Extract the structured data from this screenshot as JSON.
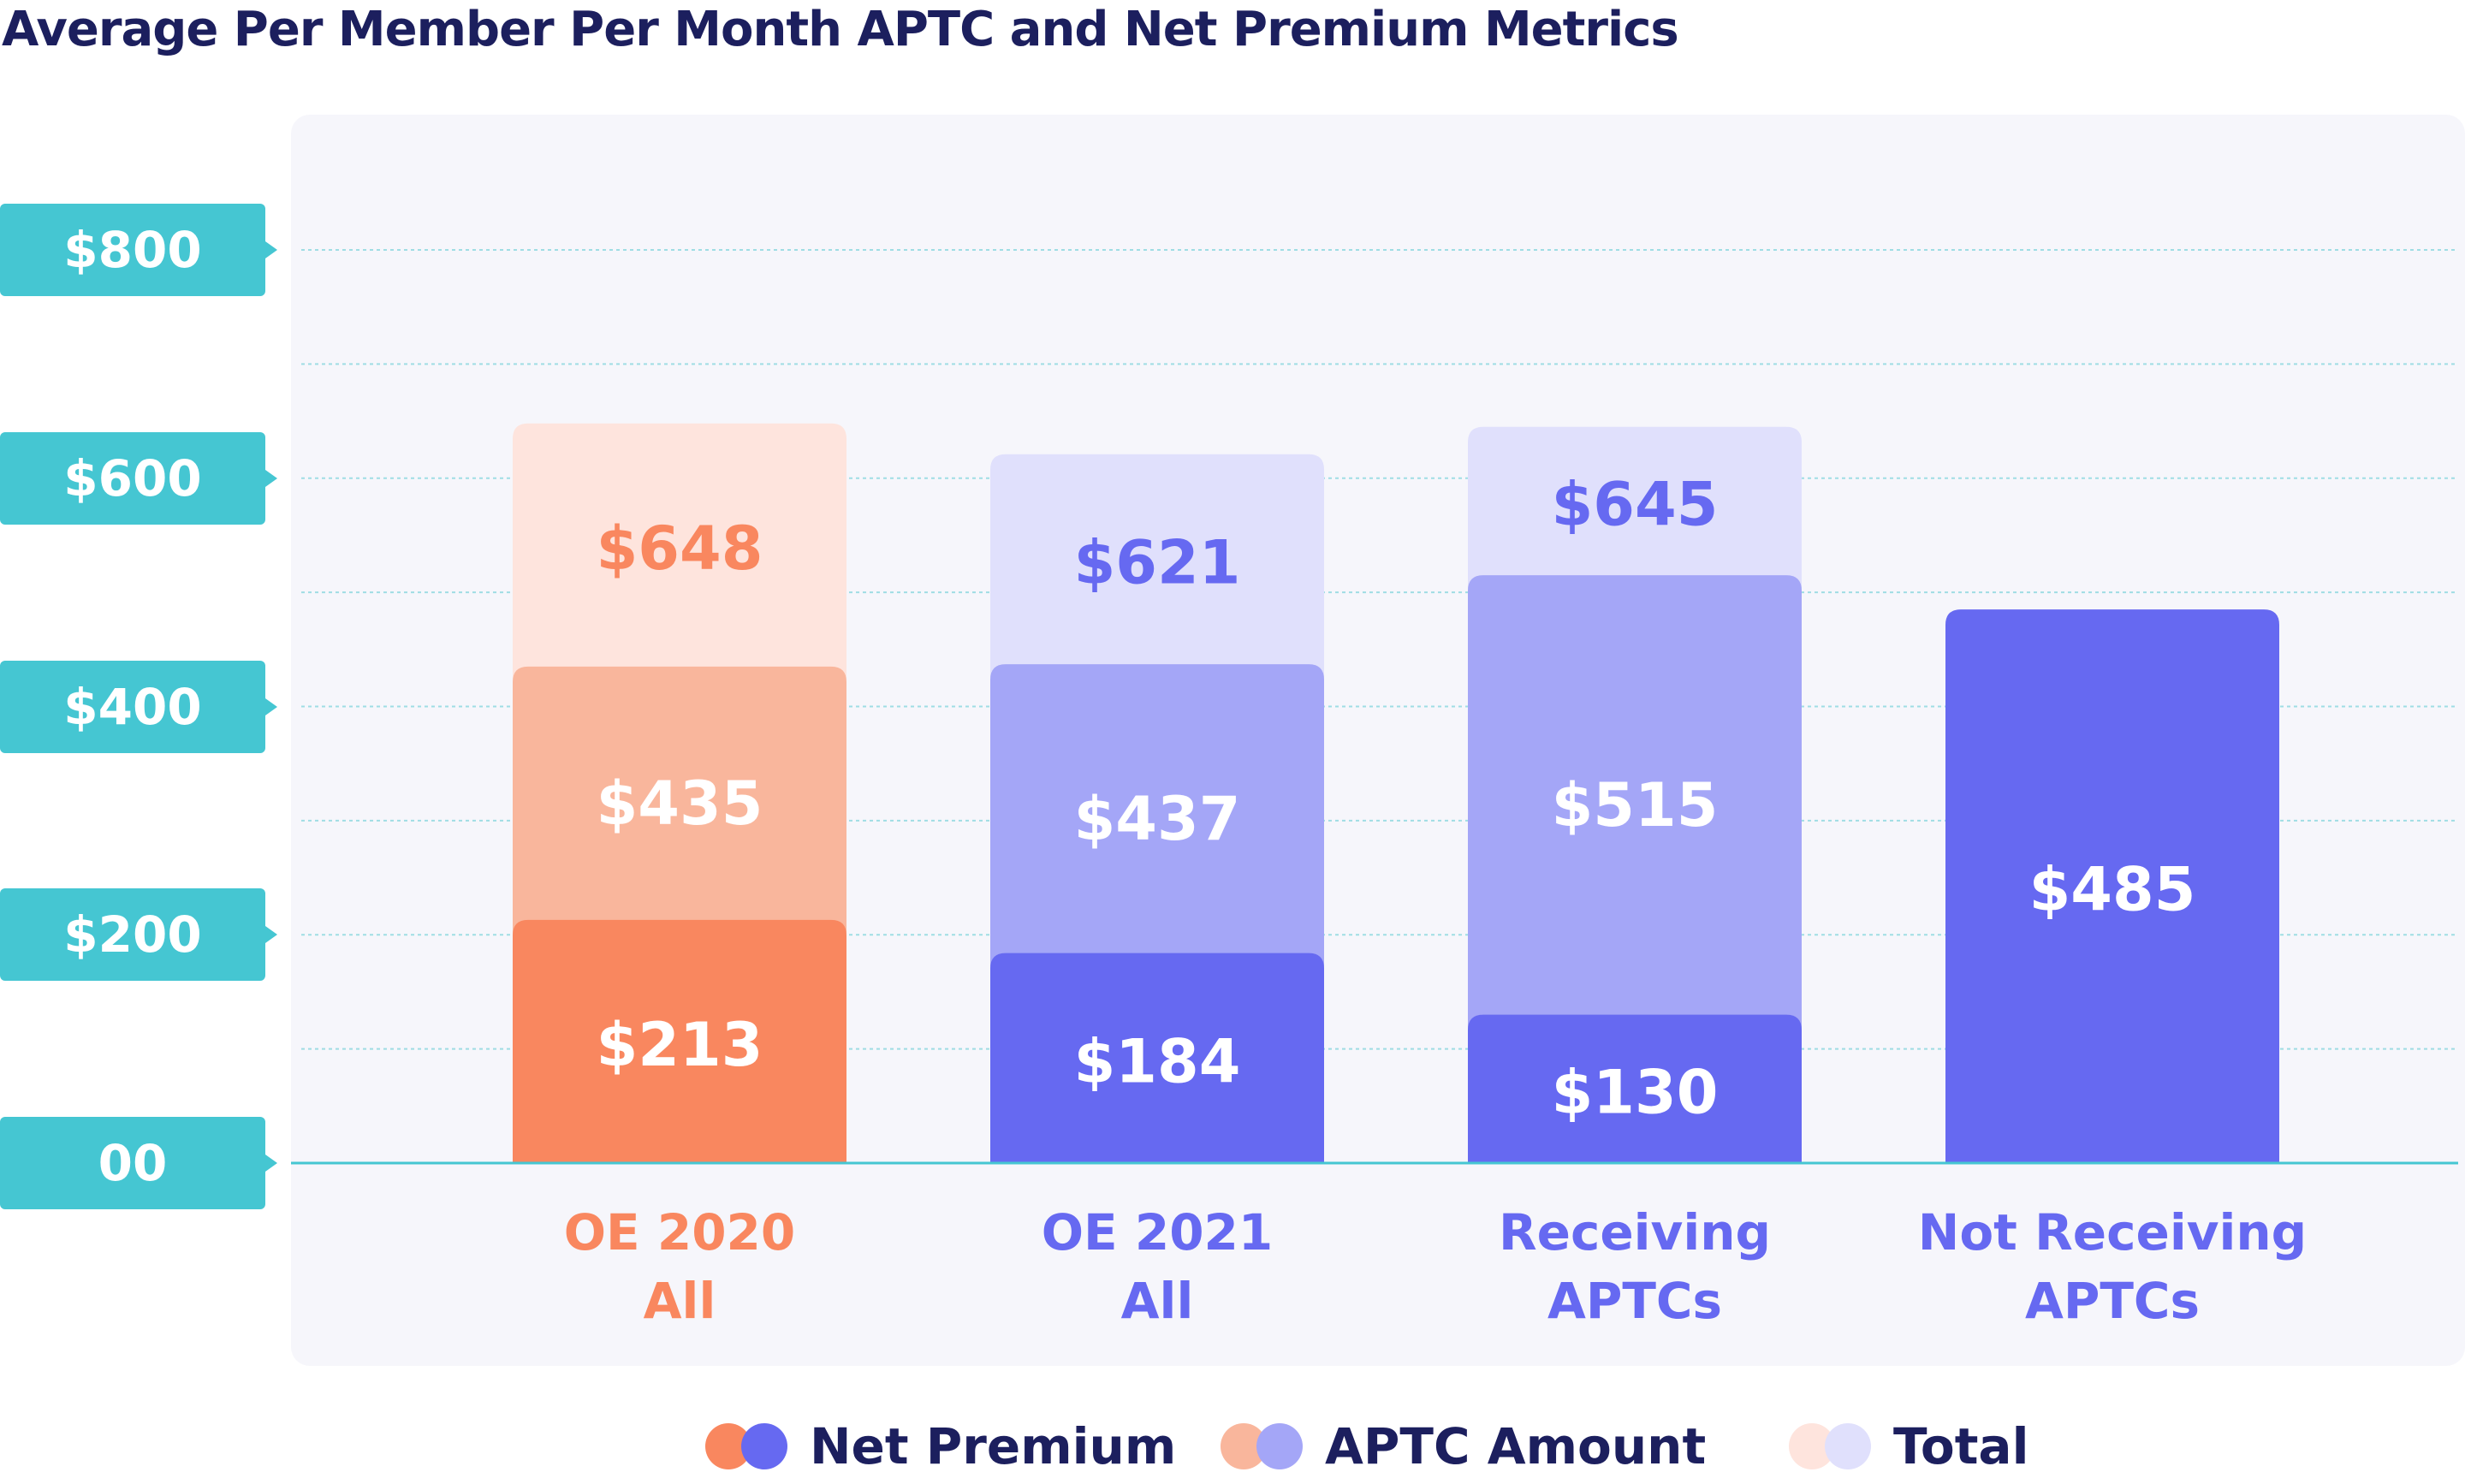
{
  "title": "Average Per Member Per Month APTC and Net Premium Metrics",
  "chart_data": {
    "type": "bar",
    "stacked": true,
    "title": "Average Per Member Per Month APTC and Net Premium Metrics",
    "categories": [
      {
        "lines": [
          "OE 2020",
          "All"
        ],
        "color": "#f9875f"
      },
      {
        "lines": [
          "OE 2021",
          "All"
        ],
        "color": "#6669f1"
      },
      {
        "lines": [
          "Receiving",
          "APTCs"
        ],
        "color": "#6669f1"
      },
      {
        "lines": [
          "Not Receiving",
          "APTCs"
        ],
        "color": "#6669f1"
      }
    ],
    "series": [
      {
        "name": "Net Premium",
        "values": [
          213,
          184,
          130,
          485
        ],
        "labels": [
          "$213",
          "$184",
          "$130",
          "$485"
        ]
      },
      {
        "name": "APTC Amount",
        "values": [
          435,
          437,
          515,
          null
        ],
        "labels": [
          "$435",
          "$437",
          "$515",
          null
        ]
      },
      {
        "name": "Total",
        "values": [
          648,
          621,
          645,
          null
        ],
        "labels": [
          "$648",
          "$621",
          "$645",
          null
        ]
      }
    ],
    "palettes": [
      {
        "net": "#f9875f",
        "aptc": "#f9b69c",
        "total": "#fee4dd",
        "totalLabel": "#f9875f"
      },
      {
        "net": "#6669f1",
        "aptc": "#a4a6f7",
        "total": "#e0e0fc",
        "totalLabel": "#6669f1"
      },
      {
        "net": "#6669f1",
        "aptc": "#a4a6f7",
        "total": "#e0e0fc",
        "totalLabel": "#6669f1"
      },
      {
        "net": "#6669f1",
        "aptc": "#a4a6f7",
        "total": "#e0e0fc",
        "totalLabel": "#6669f1"
      }
    ],
    "yticks": [
      {
        "value": 800,
        "label": "$800"
      },
      {
        "value": 600,
        "label": "$600"
      },
      {
        "value": 400,
        "label": "$400"
      },
      {
        "value": 200,
        "label": "$200"
      },
      {
        "value": 0,
        "label": "00"
      }
    ],
    "ylim": [
      0,
      800
    ],
    "grid": true,
    "legend_position": "bottom"
  },
  "legend": [
    {
      "label": "Net Premium",
      "colors": [
        "#f9875f",
        "#6669f1"
      ]
    },
    {
      "label": "APTC Amount",
      "colors": [
        "#f9b69c",
        "#a4a6f7"
      ]
    },
    {
      "label": "Total",
      "colors": [
        "#fee4dd",
        "#e0e0fc"
      ]
    }
  ]
}
